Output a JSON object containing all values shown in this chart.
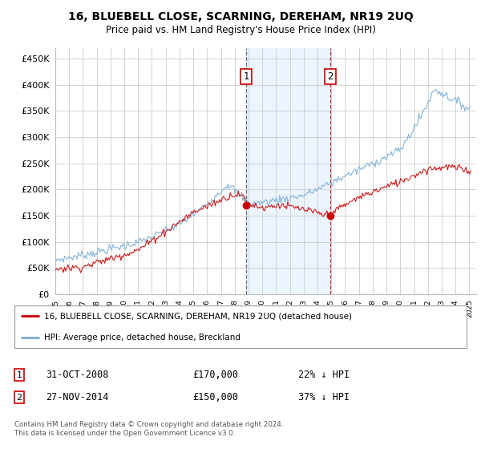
{
  "title": "16, BLUEBELL CLOSE, SCARNING, DEREHAM, NR19 2UQ",
  "subtitle": "Price paid vs. HM Land Registry's House Price Index (HPI)",
  "xlim_start": 1995.0,
  "xlim_end": 2025.5,
  "ylim": [
    0,
    470000
  ],
  "yticks": [
    0,
    50000,
    100000,
    150000,
    200000,
    250000,
    300000,
    350000,
    400000,
    450000
  ],
  "xticks": [
    1995,
    1996,
    1997,
    1998,
    1999,
    2000,
    2001,
    2002,
    2003,
    2004,
    2005,
    2006,
    2007,
    2008,
    2009,
    2010,
    2011,
    2012,
    2013,
    2014,
    2015,
    2016,
    2017,
    2018,
    2019,
    2020,
    2021,
    2022,
    2023,
    2024,
    2025
  ],
  "property_color": "#cc0000",
  "hpi_color": "#7aadd4",
  "transaction1_x": 2008.83,
  "transaction1_y": 170000,
  "transaction1_vline_color": "#444444",
  "transaction2_x": 2014.92,
  "transaction2_y": 150000,
  "transaction2_vline_color": "#cc0000",
  "legend_label_property": "16, BLUEBELL CLOSE, SCARNING, DEREHAM, NR19 2UQ (detached house)",
  "legend_label_hpi": "HPI: Average price, detached house, Breckland",
  "annotation1_num": "1",
  "annotation1_date": "31-OCT-2008",
  "annotation1_price": "£170,000",
  "annotation1_hpi": "22% ↓ HPI",
  "annotation2_num": "2",
  "annotation2_date": "27-NOV-2014",
  "annotation2_price": "£150,000",
  "annotation2_hpi": "37% ↓ HPI",
  "footer": "Contains HM Land Registry data © Crown copyright and database right 2024.\nThis data is licensed under the Open Government Licence v3.0.",
  "background_color": "#ffffff",
  "grid_color": "#cccccc",
  "shading_color": "#deeeff"
}
